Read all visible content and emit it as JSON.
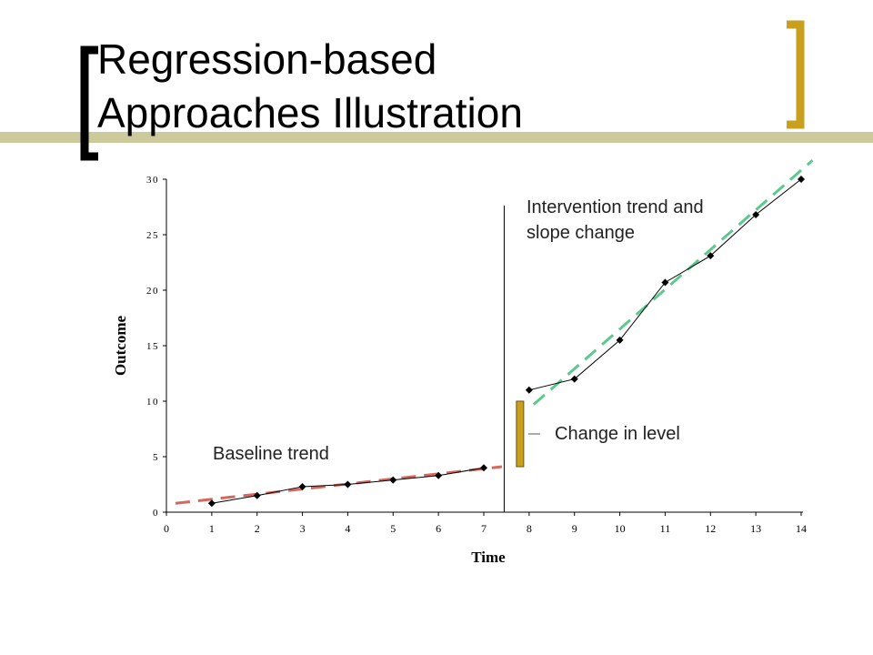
{
  "slide": {
    "title_line1": "Regression-based",
    "title_line2": "Approaches Illustration",
    "accent_color": "#C9A01E",
    "bar_color": "#CCC99A"
  },
  "annotations": {
    "intervention_line1": "Intervention trend and",
    "intervention_line2": "slope change",
    "level_change": "Change in level",
    "baseline": "Baseline trend"
  },
  "chart_data": {
    "type": "line",
    "xlabel": "Time",
    "ylabel": "Outcome",
    "xlim": [
      0,
      14
    ],
    "ylim": [
      0,
      30
    ],
    "xticks": [
      0,
      1,
      2,
      3,
      4,
      5,
      6,
      7,
      8,
      9,
      10,
      11,
      12,
      13,
      14
    ],
    "yticks": [
      0,
      5,
      10,
      15,
      20,
      25,
      30
    ],
    "grid": false,
    "intervention_x": 7.45,
    "series": [
      {
        "segment": "baseline",
        "x": [
          1,
          2,
          3,
          4,
          5,
          6,
          7
        ],
        "y": [
          0.8,
          1.5,
          2.3,
          2.5,
          2.9,
          3.3,
          4.0
        ]
      },
      {
        "segment": "intervention",
        "x": [
          8,
          9,
          10,
          11,
          12,
          13,
          14
        ],
        "y": [
          11.0,
          12.0,
          15.5,
          20.7,
          23.1,
          26.8,
          30.0
        ]
      }
    ],
    "trend_lines": [
      {
        "segment": "baseline",
        "color": "#D9665B",
        "x": [
          0.2,
          7.4
        ],
        "y": [
          0.8,
          4.1
        ]
      },
      {
        "segment": "intervention",
        "color": "#5CC98D",
        "x": [
          8.1,
          14.25
        ],
        "y": [
          9.7,
          31.7
        ]
      }
    ],
    "level_change": {
      "x": 7.8,
      "from": 4.1,
      "to": 10.0
    }
  }
}
